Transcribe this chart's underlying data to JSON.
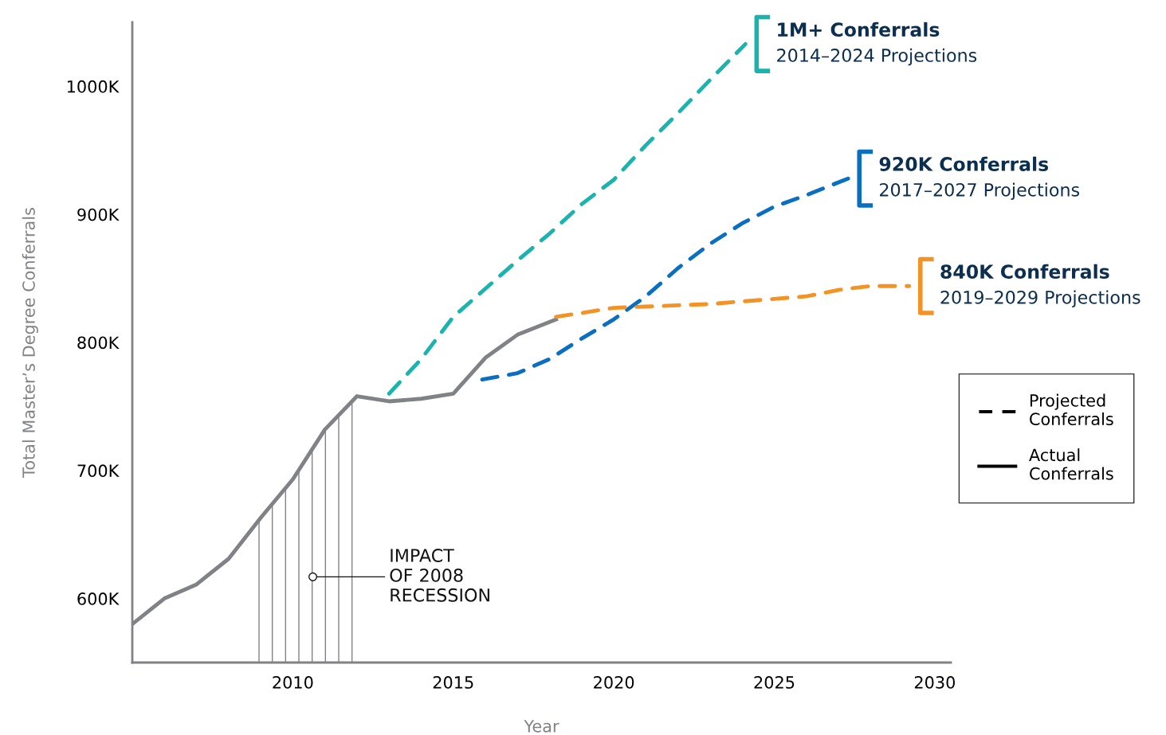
{
  "chart_data": {
    "type": "line",
    "xlabel": "Year",
    "ylabel": "Total Master’s Degree Conferrals",
    "xlim": [
      2005,
      2030.5
    ],
    "xticks": [
      2010,
      2015,
      2020,
      2025,
      2030
    ],
    "ylim": [
      550,
      1050
    ],
    "yticks": [
      {
        "value": 600,
        "label": "600K"
      },
      {
        "value": 700,
        "label": "700K"
      },
      {
        "value": 800,
        "label": "800K"
      },
      {
        "value": 900,
        "label": "900K"
      },
      {
        "value": 1000,
        "label": "1000K"
      }
    ],
    "grid": false,
    "legend": "right",
    "marker": "none",
    "series": [
      {
        "name": "Actual Conferrals",
        "color": "#808285",
        "line_style": "solid",
        "x": [
          2005,
          2006,
          2007,
          2008,
          2009,
          2010,
          2011,
          2012,
          2013,
          2014,
          2015,
          2016,
          2017,
          2018.2
        ],
        "values": [
          580,
          600,
          611,
          631,
          663,
          693,
          732,
          758,
          754,
          756,
          760,
          788,
          806,
          818
        ]
      },
      {
        "name": "1M+ Conferrals\n2014–2024 Projections",
        "color": "#1ab3ad",
        "line_style": "dashed",
        "x": [
          2013,
          2014,
          2015,
          2016,
          2017,
          2018,
          2019,
          2020,
          2021,
          2022,
          2023,
          2024.1
        ],
        "values": [
          760,
          787,
          820,
          842,
          864,
          885,
          908,
          927,
          954,
          979,
          1005,
          1033
        ]
      },
      {
        "name": "920K Conferrals\n2017–2027 Projections",
        "color": "#0a6fc0",
        "line_style": "dashed",
        "x": [
          2015.9,
          2017,
          2018,
          2019,
          2020,
          2021,
          2022,
          2023,
          2024,
          2025,
          2026,
          2027.3
        ],
        "values": [
          771,
          776,
          787,
          803,
          818,
          836,
          858,
          877,
          893,
          906,
          915,
          928
        ]
      },
      {
        "name": "840K Conferrals\n2019–2029 Projections",
        "color": "#f39325",
        "line_style": "dashed",
        "x": [
          2018.2,
          2019,
          2020,
          2021,
          2022,
          2023,
          2024,
          2025,
          2026,
          2027,
          2028,
          2029.2
        ],
        "values": [
          820,
          823,
          827,
          828,
          829,
          830,
          832,
          834,
          836,
          841,
          844,
          844
        ]
      }
    ],
    "bands": [
      {
        "axis": "x",
        "from": 2008.7,
        "to": 2012.2,
        "label": "IMPACT\nOF 2008\nRECESSION",
        "color": "#808285"
      }
    ],
    "annotations": [
      "Projected\nConferrals"
    ]
  }
}
